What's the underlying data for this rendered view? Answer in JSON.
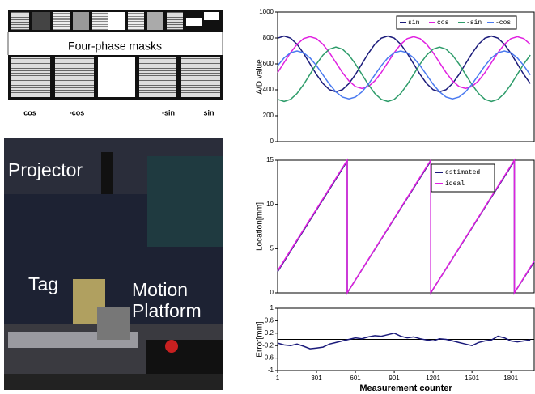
{
  "figure": {
    "mask_label": "Four-phase masks",
    "phase_labels": [
      "cos",
      "-cos",
      "-sin",
      "sin"
    ],
    "photo_labels": [
      "Projector",
      "Tag",
      "Motion Platform"
    ]
  },
  "chart_data": [
    {
      "type": "line",
      "ylabel": "A/D value",
      "xlim": [
        1,
        1981
      ],
      "ylim": [
        0,
        1000
      ],
      "yticks": [
        0,
        200,
        400,
        600,
        800,
        1000
      ],
      "legend": "upper right",
      "x": [
        1,
        51,
        101,
        151,
        201,
        251,
        301,
        351,
        401,
        451,
        501,
        551,
        601,
        651,
        701,
        751,
        801,
        851,
        901,
        951,
        1001,
        1051,
        1101,
        1151,
        1201,
        1251,
        1301,
        1351,
        1401,
        1451,
        1501,
        1551,
        1601,
        1651,
        1701,
        1751,
        1801,
        1851,
        1901,
        1951
      ],
      "series": [
        {
          "name": "sin",
          "color": "#1a1a7a",
          "values": [
            799,
            815,
            799,
            752,
            682,
            600,
            518,
            448,
            401,
            385,
            401,
            448,
            518,
            600,
            682,
            752,
            799,
            815,
            799,
            752,
            682,
            600,
            518,
            448,
            401,
            385,
            401,
            448,
            518,
            600,
            682,
            752,
            799,
            815,
            799,
            752,
            682,
            600,
            518,
            448
          ]
        },
        {
          "name": "cos",
          "color": "#e020e0",
          "values": [
            533,
            610,
            687,
            751,
            795,
            810,
            795,
            751,
            687,
            610,
            533,
            469,
            425,
            410,
            425,
            469,
            533,
            610,
            687,
            751,
            795,
            810,
            795,
            751,
            687,
            610,
            533,
            469,
            425,
            410,
            425,
            469,
            533,
            610,
            687,
            751,
            795,
            810,
            795,
            751
          ]
        },
        {
          "name": "-sin",
          "color": "#2e9c6a",
          "values": [
            326,
            310,
            326,
            372,
            440,
            520,
            600,
            668,
            714,
            730,
            714,
            668,
            600,
            520,
            440,
            372,
            326,
            310,
            326,
            372,
            440,
            520,
            600,
            668,
            714,
            730,
            714,
            668,
            600,
            520,
            440,
            372,
            326,
            310,
            326,
            372,
            440,
            520,
            600,
            668
          ]
        },
        {
          "name": "-cos",
          "color": "#4a7af0",
          "values": [
            586,
            646,
            686,
            700,
            686,
            646,
            586,
            515,
            444,
            384,
            344,
            330,
            344,
            384,
            444,
            515,
            586,
            646,
            686,
            700,
            686,
            646,
            586,
            515,
            444,
            384,
            344,
            330,
            344,
            384,
            444,
            515,
            586,
            646,
            686,
            700,
            686,
            646,
            586,
            515
          ]
        }
      ]
    },
    {
      "type": "line",
      "ylabel": "Location[mm]",
      "xlim": [
        1,
        1981
      ],
      "ylim": [
        0,
        15
      ],
      "yticks": [
        0,
        5,
        10,
        15
      ],
      "legend": "upper right",
      "x": [
        1,
        538,
        538,
        1183,
        1183,
        1828,
        1828,
        1981
      ],
      "series": [
        {
          "name": "estimated",
          "color": "#1a1a7a",
          "values": [
            2.4,
            14.9,
            0,
            14.9,
            0,
            14.9,
            0,
            3.5
          ]
        },
        {
          "name": "ideal",
          "color": "#e020e0",
          "values": [
            2.5,
            15,
            0,
            15,
            0,
            15,
            0,
            3.6
          ]
        }
      ]
    },
    {
      "type": "line",
      "ylabel": "Error[mm]",
      "xlabel": "Measurement counter",
      "xlim": [
        1,
        1981
      ],
      "ylim": [
        -1,
        1
      ],
      "yticks": [
        -1,
        -0.6,
        -0.2,
        0.2,
        0.6,
        1
      ],
      "xticks": [
        1,
        301,
        601,
        901,
        1201,
        1501,
        1801
      ],
      "zero_line": true,
      "x": [
        1,
        51,
        101,
        151,
        201,
        251,
        301,
        351,
        401,
        451,
        501,
        551,
        601,
        651,
        701,
        751,
        801,
        851,
        901,
        951,
        1001,
        1051,
        1101,
        1151,
        1201,
        1251,
        1301,
        1351,
        1401,
        1451,
        1501,
        1551,
        1601,
        1651,
        1701,
        1751,
        1801,
        1851,
        1901,
        1951
      ],
      "series": [
        {
          "color": "#1a1a7a",
          "values": [
            -0.12,
            -0.18,
            -0.2,
            -0.15,
            -0.22,
            -0.3,
            -0.28,
            -0.25,
            -0.15,
            -0.1,
            -0.05,
            0,
            0.05,
            0.02,
            0.08,
            0.12,
            0.1,
            0.15,
            0.2,
            0.1,
            0.05,
            0.08,
            0.02,
            -0.02,
            -0.05,
            0.02,
            0,
            -0.05,
            -0.1,
            -0.15,
            -0.2,
            -0.1,
            -0.05,
            -0.02,
            0.1,
            0.05,
            -0.05,
            -0.08,
            -0.05,
            -0.02
          ]
        }
      ]
    }
  ]
}
